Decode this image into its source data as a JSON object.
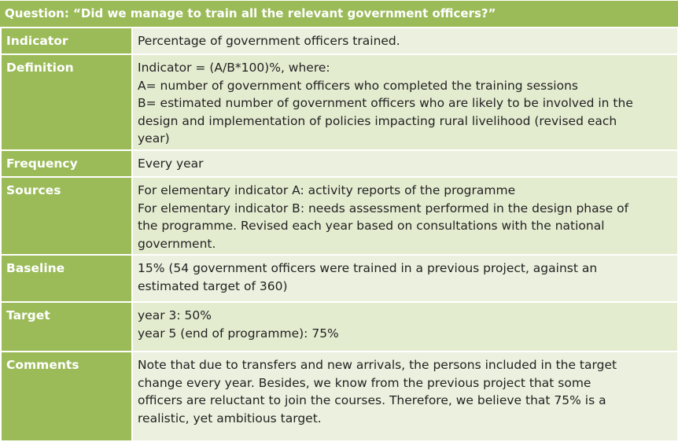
{
  "question": "Question: “Did we manage to train all the relevant government officers?”",
  "rows": [
    {
      "label": "Indicator",
      "lines": [
        "Percentage of government officers trained."
      ]
    },
    {
      "label": "Definition",
      "lines": [
        "Indicator = (A/B*100)%, where:",
        "A= number of government officers who completed the training sessions",
        "B= estimated number of government officers who are likely to be involved in the",
        "design and implementation of policies impacting rural livelihood (revised each",
        "year)"
      ]
    },
    {
      "label": "Frequency",
      "lines": [
        "Every year"
      ]
    },
    {
      "label": "Sources",
      "lines": [
        "For elementary indicator A: activity reports of the programme",
        "For elementary indicator B: needs assessment performed in the design phase of",
        "the programme. Revised each year based on consultations with the national",
        "government."
      ]
    },
    {
      "label": "Baseline",
      "lines": [
        "15% (54 government officers were trained in a previous project, against an",
        "estimated target of 360)"
      ]
    },
    {
      "label": "Target",
      "lines": [
        "year 3: 50%",
        "year 5 (end of programme): 75%"
      ]
    },
    {
      "label": "Comments",
      "lines": [
        "Note that due to transfers and new arrivals, the persons included in the target",
        "change every year. Besides, we know from the previous project that some",
        "officers are reluctant to join the courses. Therefore, we believe that 75% is a",
        "realistic, yet ambitious target."
      ]
    }
  ],
  "colors": {
    "label_bg": "#9bbb59",
    "value_bg_a": "#ebf1de",
    "value_bg_b": "#e4ecd0",
    "label_text": "#ffffff",
    "value_text": "#222222"
  }
}
